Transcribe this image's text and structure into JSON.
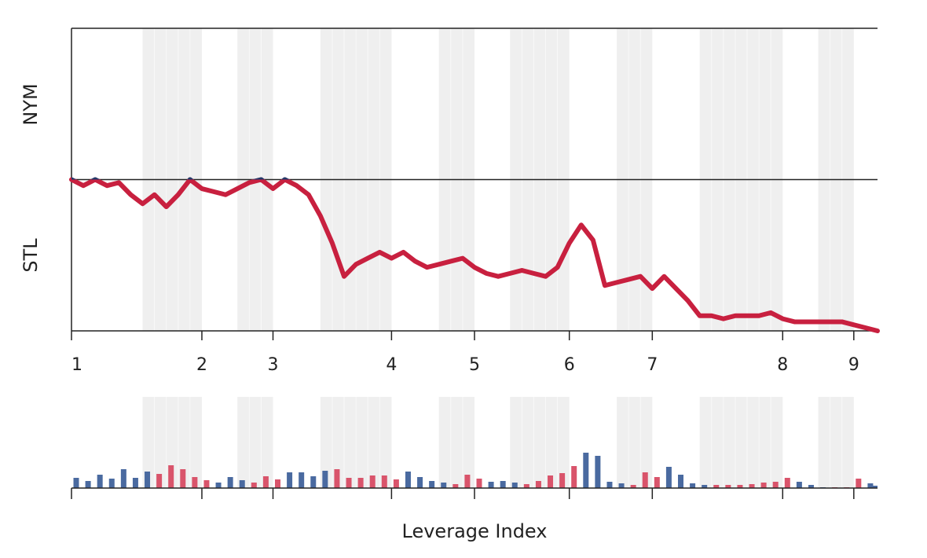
{
  "chart_data": [
    {
      "type": "line",
      "team_labels": {
        "top": "NYM",
        "bottom": "STL"
      },
      "x": [
        0,
        1,
        2,
        3,
        4,
        5,
        6,
        7,
        8,
        9,
        10,
        11,
        12,
        13,
        14,
        15,
        16,
        17,
        18,
        19,
        20,
        21,
        22,
        23,
        24,
        25,
        26,
        27,
        28,
        29,
        30,
        31,
        32,
        33,
        34,
        35,
        36,
        37,
        38,
        39,
        40,
        41,
        42,
        43,
        44,
        45,
        46,
        47,
        48,
        49,
        50,
        51,
        52,
        53,
        54,
        55,
        56,
        57,
        58,
        59,
        60,
        61,
        62,
        63,
        64,
        65,
        66,
        67,
        68
      ],
      "values": [
        0.5,
        0.48,
        0.5,
        0.48,
        0.49,
        0.45,
        0.42,
        0.45,
        0.41,
        0.45,
        0.5,
        0.47,
        0.46,
        0.45,
        0.47,
        0.49,
        0.5,
        0.47,
        0.5,
        0.48,
        0.45,
        0.38,
        0.29,
        0.18,
        0.22,
        0.24,
        0.26,
        0.24,
        0.26,
        0.23,
        0.21,
        0.22,
        0.23,
        0.24,
        0.21,
        0.19,
        0.18,
        0.19,
        0.2,
        0.19,
        0.18,
        0.21,
        0.29,
        0.35,
        0.3,
        0.15,
        0.16,
        0.17,
        0.18,
        0.14,
        0.18,
        0.14,
        0.1,
        0.05,
        0.05,
        0.04,
        0.05,
        0.05,
        0.05,
        0.06,
        0.04,
        0.03,
        0.03,
        0.03,
        0.03,
        0.03,
        0.02,
        0.01,
        0.0
      ],
      "color": "#c8203f",
      "above_color": "#1f3a6b",
      "xlim": [
        0,
        68
      ],
      "ylim": [
        0,
        1
      ],
      "hlines": [
        0,
        0.5,
        1
      ],
      "xticks": [
        {
          "value": 0,
          "label": "1"
        },
        {
          "value": 11,
          "label": "2"
        },
        {
          "value": 17,
          "label": "3"
        },
        {
          "value": 27,
          "label": "4"
        },
        {
          "value": 34,
          "label": "5"
        },
        {
          "value": 42,
          "label": "6"
        },
        {
          "value": 49,
          "label": "7"
        },
        {
          "value": 60,
          "label": "8"
        },
        {
          "value": 66,
          "label": "9"
        }
      ],
      "shaded_ranges": [
        [
          6,
          11
        ],
        [
          14,
          17
        ],
        [
          21,
          27
        ],
        [
          31,
          34
        ],
        [
          37,
          42
        ],
        [
          46,
          49
        ],
        [
          53,
          60
        ],
        [
          63,
          66
        ]
      ],
      "band_color": "#efefef"
    },
    {
      "type": "bar",
      "xlabel": "Leverage Index",
      "x": [
        0,
        1,
        2,
        3,
        4,
        5,
        6,
        7,
        8,
        9,
        10,
        11,
        12,
        13,
        14,
        15,
        16,
        17,
        18,
        19,
        20,
        21,
        22,
        23,
        24,
        25,
        26,
        27,
        28,
        29,
        30,
        31,
        32,
        33,
        34,
        35,
        36,
        37,
        38,
        39,
        40,
        41,
        42,
        43,
        44,
        45,
        46,
        47,
        48,
        49,
        50,
        51,
        52,
        53,
        54,
        55,
        56,
        57,
        58,
        59,
        60,
        61,
        62,
        63,
        64,
        65,
        66,
        67,
        68
      ],
      "values": [
        1.3,
        0.9,
        1.7,
        1.2,
        2.4,
        1.3,
        2.1,
        1.8,
        2.9,
        2.4,
        1.4,
        1.0,
        0.7,
        1.4,
        1.0,
        0.7,
        1.5,
        1.1,
        2.0,
        2.0,
        1.5,
        2.2,
        2.4,
        1.3,
        1.3,
        1.6,
        1.6,
        1.1,
        2.1,
        1.4,
        0.9,
        0.7,
        0.5,
        1.7,
        1.2,
        0.8,
        0.9,
        0.7,
        0.5,
        0.9,
        1.6,
        1.9,
        2.8,
        4.5,
        4.1,
        0.8,
        0.6,
        0.4,
        2.0,
        1.4,
        2.7,
        1.7,
        0.6,
        0.4,
        0.4,
        0.4,
        0.4,
        0.5,
        0.7,
        0.8,
        1.3,
        0.8,
        0.4,
        0.1,
        0.1,
        0.1,
        1.2,
        0.6,
        0.3
      ],
      "colors": {
        "top": "#4a6aa0",
        "bottom": "#d9546b"
      },
      "xlim": [
        0,
        68
      ],
      "ylim": [
        0,
        11.6
      ],
      "xticks": [
        0,
        11,
        17,
        27,
        34,
        42,
        49,
        60,
        66
      ]
    }
  ]
}
